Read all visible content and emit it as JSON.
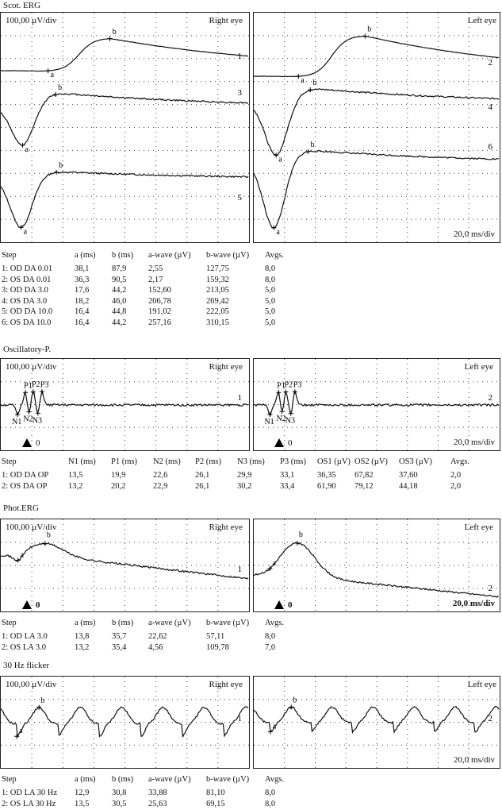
{
  "sections": {
    "scot": {
      "title": "Scot. ERG",
      "left": {
        "scale": "100,00 µV/div",
        "eye": "Right eye"
      },
      "right": {
        "eye": "Left eye",
        "time": "20,0 ms/div"
      },
      "table": {
        "headers": [
          "Step",
          "a (ms)",
          "b (ms)",
          "a-wave (µV)",
          "b-wave (µV)",
          "Avgs."
        ],
        "rows": [
          [
            "1: OD DA 0.01",
            "38,1",
            "87,9",
            "2,55",
            "127,75",
            "8,0"
          ],
          [
            "2: OS DA 0.01",
            "36,3",
            "90,5",
            "2,17",
            "159,32",
            "8,0"
          ],
          [
            "3: OD DA 3.0",
            "17,6",
            "44,2",
            "152,60",
            "213,05",
            "5,0"
          ],
          [
            "4: OS DA 3.0",
            "18,2",
            "46,0",
            "206,78",
            "269,42",
            "5,0"
          ],
          [
            "5: OD DA 10.0",
            "16,4",
            "44,8",
            "191,02",
            "222,05",
            "5,0"
          ],
          [
            "6: OS DA 10.0",
            "16,4",
            "44,2",
            "257,16",
            "310,15",
            "5,0"
          ]
        ]
      }
    },
    "osc": {
      "title": "Oscillatory-P.",
      "left": {
        "scale": "100,00 µV/div",
        "eye": "Right eye",
        "zero": "0"
      },
      "right": {
        "eye": "Left eye",
        "time": "20,0 ms/div",
        "zero": "0"
      },
      "table": {
        "headers": [
          "Step",
          "N1 (ms)",
          "P1 (ms)",
          "N2 (ms)",
          "P2 (ms)",
          "N3 (ms)",
          "P3 (ms)",
          "OS1 (µV)",
          "OS2 (µV)",
          "OS3 (µV)",
          "Avgs."
        ],
        "rows": [
          [
            "1: OD DA OP",
            "13,5",
            "19,9",
            "22,6",
            "26,1",
            "29,9",
            "33,1",
            "36,35",
            "67,82",
            "37,60",
            "2,0"
          ],
          [
            "2: OS DA OP",
            "13,2",
            "20,2",
            "22,9",
            "26,1",
            "30,2",
            "33,4",
            "61,90",
            "79,12",
            "44,18",
            "2,0"
          ]
        ]
      }
    },
    "phot": {
      "title": "Phot.ERG",
      "left": {
        "scale": "100,00 µV/div",
        "eye": "Right eye",
        "zero": "0"
      },
      "right": {
        "eye": "Left eye",
        "time": "20,0 ms/div",
        "zero": "0"
      },
      "table": {
        "headers": [
          "Step",
          "a (ms)",
          "b (ms)",
          "a-wave (µV)",
          "b-wave (µV)",
          "Avgs."
        ],
        "rows": [
          [
            "1: OD LA 3.0",
            "13,8",
            "35,7",
            "22,62",
            "57,11",
            "8,0"
          ],
          [
            "2: OS LA 3.0",
            "13,2",
            "35,4",
            "4,56",
            "109,78",
            "7,0"
          ]
        ]
      }
    },
    "flicker": {
      "title": "30 Hz flicker",
      "left": {
        "scale": "100,00 µV/div",
        "eye": "Right eye"
      },
      "right": {
        "eye": "Left eye",
        "time": "20,0 ms/div"
      },
      "table": {
        "headers": [
          "Step",
          "a (ms)",
          "b (ms)",
          "a-wave (µV)",
          "b-wave (µV)",
          "Avgs."
        ],
        "rows": [
          [
            "1: OD LA 30 Hz",
            "12,9",
            "30,8",
            "33,88",
            "81,10",
            "8,0"
          ],
          [
            "2: OS LA 30 Hz",
            "13,5",
            "30,5",
            "25,63",
            "69,15",
            "8,0"
          ]
        ]
      }
    }
  },
  "chart_data": [
    {
      "type": "line",
      "title": "Scot. ERG",
      "panels": [
        "Right eye",
        "Left eye"
      ],
      "xlabel": "20,0 ms/div",
      "ylabel": "100,00 µV/div",
      "series": [
        {
          "name": "1",
          "eye": "Right eye",
          "marks": [
            "0",
            "N",
            "a",
            "b"
          ],
          "x": [
            0,
            38.1,
            87.9,
            200
          ],
          "y": [
            0,
            -2.55,
            127.75,
            60
          ]
        },
        {
          "name": "3",
          "eye": "Right eye",
          "marks": [
            "N",
            "a",
            "b"
          ],
          "x": [
            0,
            17.6,
            44.2,
            200
          ],
          "y": [
            0,
            -152.6,
            60.45,
            -20
          ]
        },
        {
          "name": "5",
          "eye": "Right eye",
          "marks": [
            "N",
            "a",
            "b"
          ],
          "x": [
            0,
            16.4,
            44.8,
            200
          ],
          "y": [
            0,
            -191.02,
            31.03,
            -10
          ]
        },
        {
          "name": "2",
          "eye": "Left eye",
          "marks": [
            "0",
            "N",
            "a",
            "b"
          ],
          "x": [
            0,
            36.3,
            90.5,
            200
          ],
          "y": [
            0,
            -2.17,
            159.32,
            0
          ]
        },
        {
          "name": "4",
          "eye": "Left eye",
          "marks": [
            "N",
            "a",
            "b"
          ],
          "x": [
            0,
            18.2,
            46.0,
            200
          ],
          "y": [
            0,
            -206.78,
            62.64,
            -30
          ]
        },
        {
          "name": "6",
          "eye": "Left eye",
          "marks": [
            "N",
            "a",
            "b"
          ],
          "x": [
            0,
            16.4,
            44.2,
            200
          ],
          "y": [
            0,
            -257.16,
            52.99,
            20
          ]
        }
      ]
    },
    {
      "type": "line",
      "title": "Oscillatory-P.",
      "panels": [
        "Right eye",
        "Left eye"
      ],
      "xlabel": "20,0 ms/div",
      "ylabel": "100,00 µV/div",
      "series": [
        {
          "name": "1",
          "eye": "Right eye",
          "marks": [
            "N1",
            "P1",
            "N2",
            "P2",
            "N3",
            "P3"
          ],
          "x": [
            13.5,
            19.9,
            22.6,
            26.1,
            29.9,
            33.1
          ]
        },
        {
          "name": "2",
          "eye": "Left eye",
          "marks": [
            "N1",
            "P1",
            "N2",
            "P2",
            "N3",
            "P3"
          ],
          "x": [
            13.2,
            20.2,
            22.9,
            26.1,
            30.2,
            33.4
          ]
        }
      ]
    },
    {
      "type": "line",
      "title": "Phot.ERG",
      "panels": [
        "Right eye",
        "Left eye"
      ],
      "xlabel": "20,0 ms/div",
      "ylabel": "100,00 µV/div",
      "series": [
        {
          "name": "1",
          "eye": "Right eye",
          "marks": [
            "N",
            "a",
            "b"
          ],
          "x": [
            0,
            13.8,
            35.7
          ],
          "y": [
            0,
            -22.62,
            34.49
          ]
        },
        {
          "name": "2",
          "eye": "Left eye",
          "marks": [
            "N",
            "a",
            "b"
          ],
          "x": [
            0,
            13.2,
            35.4
          ],
          "y": [
            0,
            -4.56,
            105.22
          ]
        }
      ]
    },
    {
      "type": "line",
      "title": "30 Hz flicker",
      "panels": [
        "Right eye",
        "Left eye"
      ],
      "xlabel": "20,0 ms/div",
      "ylabel": "100,00 µV/div",
      "series": [
        {
          "name": "1",
          "eye": "Right eye",
          "marks": [
            "N",
            "a",
            "b"
          ],
          "x": [
            0,
            12.9,
            30.8
          ],
          "y": [
            0,
            -33.88,
            47.22
          ]
        },
        {
          "name": "2",
          "eye": "Left eye",
          "marks": [
            "N",
            "a",
            "b"
          ],
          "x": [
            0,
            13.5,
            30.5
          ],
          "y": [
            0,
            -25.63,
            43.52
          ]
        }
      ]
    }
  ]
}
